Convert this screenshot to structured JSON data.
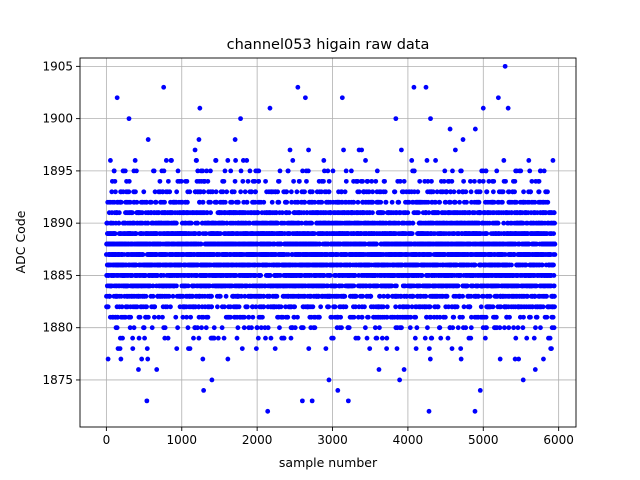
{
  "chart_data": {
    "type": "scatter",
    "title": "channel053 higain raw data",
    "xlabel": "sample number",
    "ylabel": "ADC Code",
    "xlim": [
      -350,
      6230
    ],
    "ylim": [
      1870.5,
      1905.8
    ],
    "xticks": [
      0,
      1000,
      2000,
      3000,
      4000,
      5000,
      6000
    ],
    "yticks": [
      1875,
      1880,
      1885,
      1890,
      1895,
      1900,
      1905
    ],
    "xtick_labels": [
      "0",
      "1000",
      "2000",
      "3000",
      "4000",
      "5000",
      "6000"
    ],
    "ytick_labels": [
      "1875",
      "1880",
      "1885",
      "1890",
      "1895",
      "1900",
      "1905"
    ],
    "grid": true,
    "marker_color": "#0000ff",
    "n_points": 6000,
    "x_range": [
      0,
      5950
    ],
    "baseline": 1887,
    "dense_band": [
      1883,
      1893
    ],
    "outliers": [
      {
        "x": 143,
        "y": 1902
      },
      {
        "x": 760,
        "y": 1903
      },
      {
        "x": 537,
        "y": 1873
      },
      {
        "x": 1290,
        "y": 1874
      },
      {
        "x": 1400,
        "y": 1875
      },
      {
        "x": 2140,
        "y": 1872
      },
      {
        "x": 2540,
        "y": 1903
      },
      {
        "x": 2640,
        "y": 1902
      },
      {
        "x": 2600,
        "y": 1873
      },
      {
        "x": 2730,
        "y": 1873
      },
      {
        "x": 3130,
        "y": 1902
      },
      {
        "x": 3210,
        "y": 1873
      },
      {
        "x": 4080,
        "y": 1903
      },
      {
        "x": 4240,
        "y": 1903
      },
      {
        "x": 4280,
        "y": 1872
      },
      {
        "x": 4890,
        "y": 1872
      },
      {
        "x": 5290,
        "y": 1905
      },
      {
        "x": 5200,
        "y": 1902
      },
      {
        "x": 2170,
        "y": 1901
      },
      {
        "x": 1240,
        "y": 1901
      },
      {
        "x": 1780,
        "y": 1900
      },
      {
        "x": 4300,
        "y": 1900
      },
      {
        "x": 3840,
        "y": 1900
      },
      {
        "x": 4960,
        "y": 1874
      },
      {
        "x": 5330,
        "y": 1901
      },
      {
        "x": 5000,
        "y": 1901
      },
      {
        "x": 300,
        "y": 1900
      },
      {
        "x": 3070,
        "y": 1874
      },
      {
        "x": 3890,
        "y": 1875
      },
      {
        "x": 5530,
        "y": 1875
      }
    ]
  }
}
